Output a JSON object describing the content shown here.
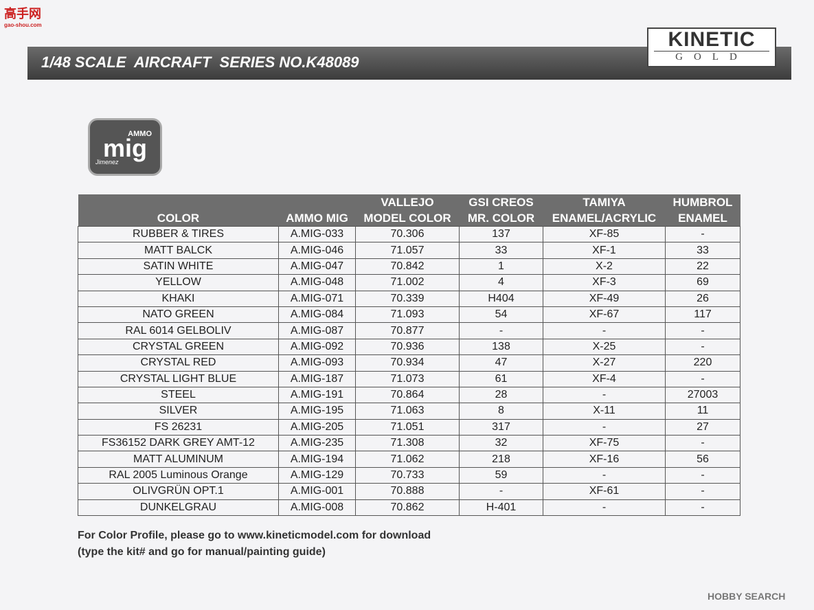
{
  "watermark": {
    "title": "高手网",
    "url": "gao-shou.com"
  },
  "header": {
    "title": "1/48 SCALE  AIRCRAFT  SERIES NO.K48089",
    "brand": "KINETIC",
    "brand_sub": "GOLD"
  },
  "logo": {
    "top": "AMMO",
    "main": "mig",
    "sub": "Jimenez"
  },
  "table": {
    "headers": [
      [
        "COLOR"
      ],
      [
        "AMMO MIG"
      ],
      [
        "VALLEJO",
        "MODEL COLOR"
      ],
      [
        "GSI CREOS",
        "MR. COLOR"
      ],
      [
        "TAMIYA",
        "ENAMEL/ACRYLIC"
      ],
      [
        "HUMBROL",
        "ENAMEL"
      ]
    ],
    "rows": [
      [
        "RUBBER & TIRES",
        "A.MIG-033",
        "70.306",
        "137",
        "XF-85",
        "-"
      ],
      [
        "MATT BALCK",
        "A.MIG-046",
        "71.057",
        "33",
        "XF-1",
        "33"
      ],
      [
        "SATIN WHITE",
        "A.MIG-047",
        "70.842",
        "1",
        "X-2",
        "22"
      ],
      [
        "YELLOW",
        "A.MIG-048",
        "71.002",
        "4",
        "XF-3",
        "69"
      ],
      [
        "KHAKI",
        "A.MIG-071",
        "70.339",
        "H404",
        "XF-49",
        "26"
      ],
      [
        "NATO GREEN",
        "A.MIG-084",
        "71.093",
        "54",
        "XF-67",
        "117"
      ],
      [
        "RAL 6014 GELBOLIV",
        "A.MIG-087",
        "70.877",
        "-",
        "-",
        "-"
      ],
      [
        "CRYSTAL GREEN",
        "A.MIG-092",
        "70.936",
        "138",
        "X-25",
        "-"
      ],
      [
        "CRYSTAL RED",
        "A.MIG-093",
        "70.934",
        "47",
        "X-27",
        "220"
      ],
      [
        "CRYSTAL LIGHT BLUE",
        "A.MIG-187",
        "71.073",
        "61",
        "XF-4",
        "-"
      ],
      [
        "STEEL",
        "A.MIG-191",
        "70.864",
        "28",
        "-",
        "27003"
      ],
      [
        "SILVER",
        "A.MIG-195",
        "71.063",
        "8",
        "X-11",
        "11"
      ],
      [
        "FS 26231",
        "A.MIG-205",
        "71.051",
        "317",
        "-",
        "27"
      ],
      [
        "FS36152 DARK GREY AMT-12",
        "A.MIG-235",
        "71.308",
        "32",
        "XF-75",
        "-"
      ],
      [
        "MATT ALUMINUM",
        "A.MIG-194",
        "71.062",
        "218",
        "XF-16",
        "56"
      ],
      [
        "RAL 2005 Luminous Orange",
        "A.MIG-129",
        "70.733",
        "59",
        "-",
        "-"
      ],
      [
        "OLIVGRÜN OPT.1",
        "A.MIG-001",
        "70.888",
        "-",
        "XF-61",
        "-"
      ],
      [
        "DUNKELGRAU",
        "A.MIG-008",
        "70.862",
        "H-401",
        "-",
        "-"
      ]
    ]
  },
  "footer": {
    "lines": [
      "For Color Profile, please go to www.kineticmodel.com for download",
      "(type the kit# and go for manual/painting guide)"
    ],
    "credit": "HOBBY SEARCH"
  }
}
